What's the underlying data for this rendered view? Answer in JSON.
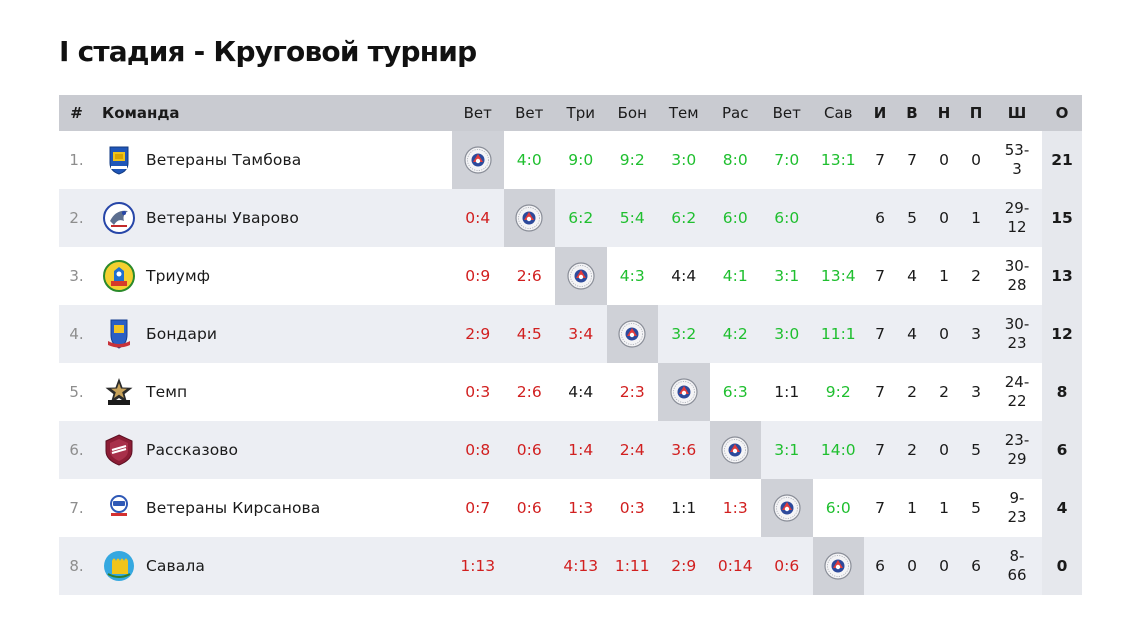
{
  "page": {
    "title": "I стадия - Круговой турнир"
  },
  "table": {
    "headers": {
      "num": "#",
      "team": "Команда",
      "opponents": [
        "Вет",
        "Вет",
        "Три",
        "Бон",
        "Тем",
        "Рас",
        "Вет",
        "Сав"
      ],
      "games": "И",
      "wins": "В",
      "draws": "Н",
      "losses": "П",
      "goals": "Ш",
      "points": "О"
    },
    "rows": [
      {
        "num": "1.",
        "team": "Ветераны Тамбова",
        "logo_icon": "tambov-crest-icon",
        "results": [
          "",
          "4:0",
          "9:0",
          "9:2",
          "3:0",
          "8:0",
          "7:0",
          "13:1"
        ],
        "outcomes": [
          "self",
          "win",
          "win",
          "win",
          "win",
          "win",
          "win",
          "win"
        ],
        "games": "7",
        "wins": "7",
        "draws": "0",
        "losses": "0",
        "goals_for": "53-",
        "goals_against": "3",
        "points": "21"
      },
      {
        "num": "2.",
        "team": "Ветераны Уварово",
        "logo_icon": "uvarovo-eagle-icon",
        "results": [
          "0:4",
          "",
          "6:2",
          "5:4",
          "6:2",
          "6:0",
          "6:0",
          ""
        ],
        "outcomes": [
          "loss",
          "self",
          "win",
          "win",
          "win",
          "win",
          "win",
          "none"
        ],
        "games": "6",
        "wins": "5",
        "draws": "0",
        "losses": "1",
        "goals_for": "29-",
        "goals_against": "12",
        "points": "15"
      },
      {
        "num": "3.",
        "team": "Триумф",
        "logo_icon": "triumph-crest-icon",
        "results": [
          "0:9",
          "2:6",
          "",
          "4:3",
          "4:4",
          "4:1",
          "3:1",
          "13:4"
        ],
        "outcomes": [
          "loss",
          "loss",
          "self",
          "win",
          "draw",
          "win",
          "win",
          "win"
        ],
        "games": "7",
        "wins": "4",
        "draws": "1",
        "losses": "2",
        "goals_for": "30-",
        "goals_against": "28",
        "points": "13"
      },
      {
        "num": "4.",
        "team": "Бондари",
        "logo_icon": "bondari-crest-icon",
        "results": [
          "2:9",
          "4:5",
          "3:4",
          "",
          "3:2",
          "4:2",
          "3:0",
          "11:1"
        ],
        "outcomes": [
          "loss",
          "loss",
          "loss",
          "self",
          "win",
          "win",
          "win",
          "win"
        ],
        "games": "7",
        "wins": "4",
        "draws": "0",
        "losses": "3",
        "goals_for": "30-",
        "goals_against": "23",
        "points": "12"
      },
      {
        "num": "5.",
        "team": "Темп",
        "logo_icon": "temp-star-icon",
        "results": [
          "0:3",
          "2:6",
          "4:4",
          "2:3",
          "",
          "6:3",
          "1:1",
          "9:2"
        ],
        "outcomes": [
          "loss",
          "loss",
          "draw",
          "loss",
          "self",
          "win",
          "draw",
          "win"
        ],
        "games": "7",
        "wins": "2",
        "draws": "2",
        "losses": "3",
        "goals_for": "24-",
        "goals_against": "22",
        "points": "8"
      },
      {
        "num": "6.",
        "team": "Рассказово",
        "logo_icon": "rasskazovo-shield-icon",
        "results": [
          "0:8",
          "0:6",
          "1:4",
          "2:4",
          "3:6",
          "",
          "3:1",
          "14:0"
        ],
        "outcomes": [
          "loss",
          "loss",
          "loss",
          "loss",
          "loss",
          "self",
          "win",
          "win"
        ],
        "games": "7",
        "wins": "2",
        "draws": "0",
        "losses": "5",
        "goals_for": "23-",
        "goals_against": "29",
        "points": "6"
      },
      {
        "num": "7.",
        "team": "Ветераны Кирсанова",
        "logo_icon": "kirsanov-hockey-icon",
        "results": [
          "0:7",
          "0:6",
          "1:3",
          "0:3",
          "1:1",
          "1:3",
          "",
          "6:0"
        ],
        "outcomes": [
          "loss",
          "loss",
          "loss",
          "loss",
          "draw",
          "loss",
          "self",
          "win"
        ],
        "games": "7",
        "wins": "1",
        "draws": "1",
        "losses": "5",
        "goals_for": "9-",
        "goals_against": "23",
        "points": "4"
      },
      {
        "num": "8.",
        "team": "Савала",
        "logo_icon": "savala-crest-icon",
        "results": [
          "1:13",
          "",
          "4:13",
          "1:11",
          "2:9",
          "0:14",
          "0:6",
          ""
        ],
        "outcomes": [
          "loss",
          "none",
          "loss",
          "loss",
          "loss",
          "loss",
          "loss",
          "self"
        ],
        "games": "6",
        "wins": "0",
        "draws": "0",
        "losses": "6",
        "goals_for": "8-",
        "goals_against": "66",
        "points": "0"
      }
    ]
  },
  "colors": {
    "win": "#1fbf2f",
    "loss": "#d11f1f",
    "draw": "#1a1a1a",
    "header_bg": "#c9cbd1",
    "self_cell_bg": "#cfd1d7"
  },
  "icons": {
    "self_cell": "league-badge-icon"
  }
}
